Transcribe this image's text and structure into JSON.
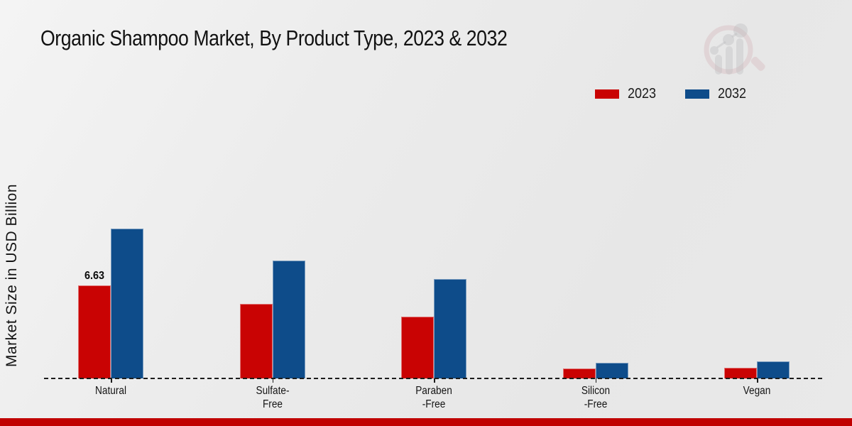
{
  "title": "Organic Shampoo Market, By Product Type, 2023 & 2032",
  "ylabel": "Market Size in USD Billion",
  "colors": {
    "series_2023": "#c90303",
    "series_2032": "#0e4c8a",
    "footer_bar": "#c00000"
  },
  "watermark": {
    "name": "market-research-chart-logo"
  },
  "chart_data": {
    "type": "bar",
    "title": "Organic Shampoo Market, By Product Type, 2023 & 2032",
    "xlabel": "",
    "ylabel": "Market Size in USD Billion",
    "ylim": [
      0,
      12
    ],
    "grid": false,
    "legend_position": "top-right",
    "categories": [
      "Natural",
      "Sulfate-Free",
      "Paraben-Free",
      "Silicon-Free",
      "Vegan"
    ],
    "category_label_lines": [
      [
        "Natural"
      ],
      [
        "Sulfate-",
        "Free"
      ],
      [
        "Paraben",
        "-Free"
      ],
      [
        "Silicon",
        "-Free"
      ],
      [
        "Vegan"
      ]
    ],
    "series": [
      {
        "name": "2023",
        "color": "#c90303",
        "values": [
          6.63,
          5.3,
          4.4,
          0.7,
          0.76
        ]
      },
      {
        "name": "2032",
        "color": "#0e4c8a",
        "values": [
          10.7,
          8.4,
          7.1,
          1.1,
          1.2
        ]
      }
    ],
    "bar_labels": [
      {
        "series": 0,
        "category": 0,
        "text": "6.63"
      }
    ]
  }
}
